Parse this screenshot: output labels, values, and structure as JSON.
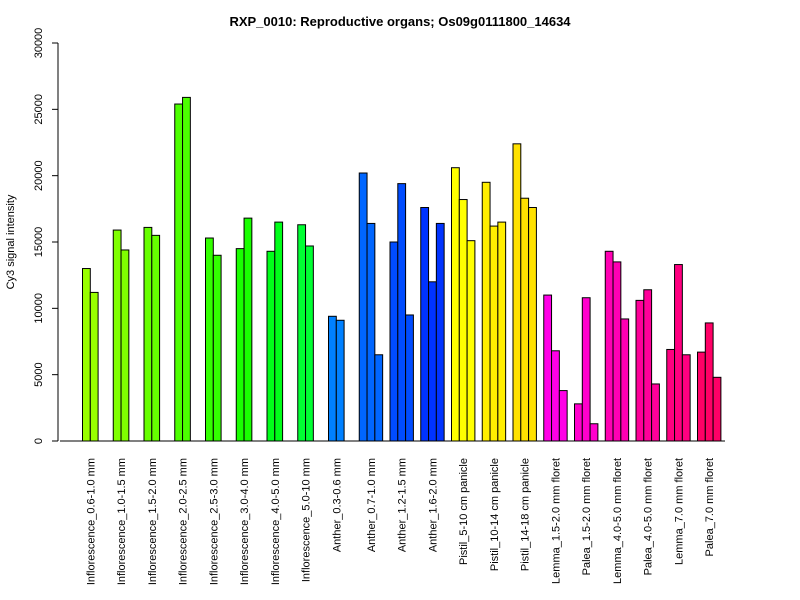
{
  "chart_data": {
    "type": "bar",
    "title": "RXP_0010: Reproductive organs; Os09g0111800_14634",
    "xlabel": "",
    "ylabel": "Cy3 signal intensity",
    "ylim": [
      0,
      30000
    ],
    "yticks": [
      0,
      5000,
      10000,
      15000,
      20000,
      25000,
      30000
    ],
    "grid": false,
    "legend": "none",
    "groups": [
      {
        "label": "Inflorescence_0.6-1.0 mm",
        "color": "#99ff00",
        "values": [
          13000,
          11200
        ]
      },
      {
        "label": "Inflorescence_1.0-1.5 mm",
        "color": "#7fff00",
        "values": [
          15900,
          14400
        ]
      },
      {
        "label": "Inflorescence_1.5-2.0 mm",
        "color": "#66ff00",
        "values": [
          16100,
          15500
        ]
      },
      {
        "label": "Inflorescence_2.0-2.5 mm",
        "color": "#4cff00",
        "values": [
          25400,
          25900
        ]
      },
      {
        "label": "Inflorescence_2.5-3.0 mm",
        "color": "#33ff00",
        "values": [
          15300,
          14000
        ]
      },
      {
        "label": "Inflorescence_3.0-4.0 mm",
        "color": "#19ff00",
        "values": [
          14500,
          16800
        ]
      },
      {
        "label": "Inflorescence_4.0-5.0 mm",
        "color": "#00ff19",
        "values": [
          14300,
          16500
        ]
      },
      {
        "label": "Inflorescence_5.0-10 mm",
        "color": "#00ff33",
        "values": [
          16300,
          14700
        ]
      },
      {
        "label": "Anther_0.3-0.6 mm",
        "color": "#0080ff",
        "values": [
          9400,
          9100
        ]
      },
      {
        "label": "Anther_0.7-1.0 mm",
        "color": "#0066ff",
        "values": [
          20200,
          16400,
          6500
        ]
      },
      {
        "label": "Anther_1.2-1.5 mm",
        "color": "#004cff",
        "values": [
          15000,
          19400,
          9500
        ]
      },
      {
        "label": "Anther_1.6-2.0 mm",
        "color": "#0033ff",
        "values": [
          17600,
          12000,
          16400
        ]
      },
      {
        "label": "Pistil_5-10 cm panicle",
        "color": "#ffff00",
        "values": [
          20600,
          18200,
          15100
        ]
      },
      {
        "label": "Pistil_10-14 cm panicle",
        "color": "#ffee00",
        "values": [
          19500,
          16200,
          16500
        ]
      },
      {
        "label": "Pistil_14-18 cm panicle",
        "color": "#ffe100",
        "values": [
          22400,
          18300,
          17600
        ]
      },
      {
        "label": "Lemma_1.5-2.0 mm floret",
        "color": "#ff00e6",
        "values": [
          11000,
          6800,
          3800
        ]
      },
      {
        "label": "Palea_1.5-2.0 mm floret",
        "color": "#ff00cc",
        "values": [
          2800,
          10800,
          1300
        ]
      },
      {
        "label": "Lemma_4.0-5.0 mm floret",
        "color": "#ff00b3",
        "values": [
          14300,
          13500,
          9200
        ]
      },
      {
        "label": "Palea_4.0-5.0 mm floret",
        "color": "#ff0099",
        "values": [
          10600,
          11400,
          4300
        ]
      },
      {
        "label": "Lemma_7.0 mm floret",
        "color": "#ff0080",
        "values": [
          6900,
          13300,
          6500
        ]
      },
      {
        "label": "Palea_7.0 mm floret",
        "color": "#ff0066",
        "values": [
          6700,
          8900,
          4800
        ]
      }
    ]
  }
}
